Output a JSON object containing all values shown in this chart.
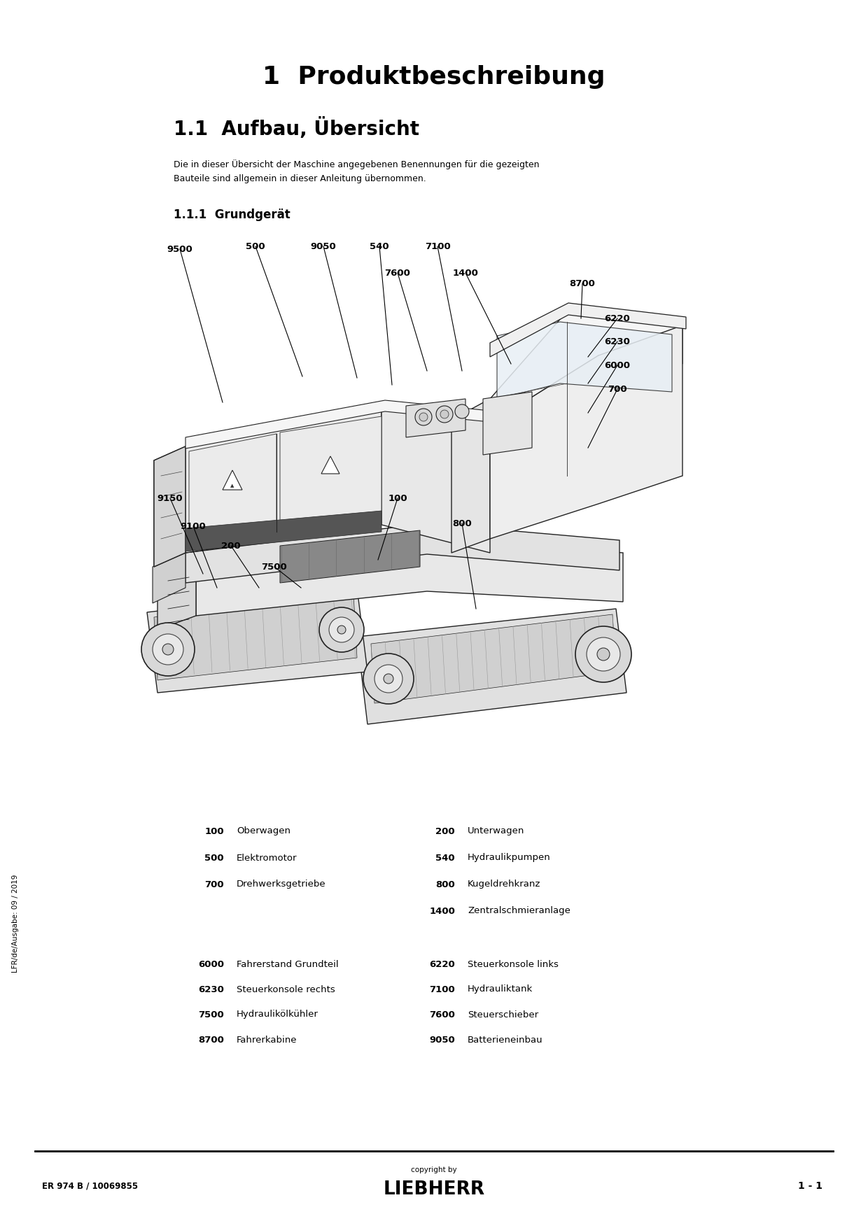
{
  "bg_color": "#ffffff",
  "page_title": "1  Produktbeschreibung",
  "section_title": "1.1  Aufbau, Übersicht",
  "section_desc_line1": "Die in dieser Übersicht der Maschine angegebenen Benennungen für die gezeigten",
  "section_desc_line2": "Bauteile sind allgemein in dieser Anleitung übernommen.",
  "subsection_title": "1.1.1  Grundgerät",
  "parts_col1": [
    [
      "100",
      "Oberwagen"
    ],
    [
      "500",
      "Elektromotor"
    ],
    [
      "700",
      "Drehwerksgetriebe"
    ]
  ],
  "parts_col2_top": [
    [
      "200",
      "Unterwagen"
    ],
    [
      "540",
      "Hydraulikpumpen"
    ],
    [
      "800",
      "Kugeldrehkranz"
    ],
    [
      "1400",
      "Zentralschmieranlage"
    ]
  ],
  "parts_col1_bottom": [
    [
      "6000",
      "Fahrerstand Grundteil"
    ],
    [
      "6230",
      "Steuerkonsole rechts"
    ],
    [
      "7500",
      "Hydraulikölkühler"
    ],
    [
      "8700",
      "Fahrerkabine"
    ]
  ],
  "parts_col2_bottom": [
    [
      "6220",
      "Steuerkonsole links"
    ],
    [
      "7100",
      "Hydrauliktank"
    ],
    [
      "7600",
      "Steuerschieber"
    ],
    [
      "9050",
      "Batterieneinbau"
    ]
  ],
  "footer_left": "ER 974 B / 10069855",
  "footer_center_top": "copyright by",
  "footer_center_bottom": "LIEBHERR",
  "footer_right": "1 - 1",
  "sidebar_text": "LFR/de/Ausgabe: 09 / 2019"
}
